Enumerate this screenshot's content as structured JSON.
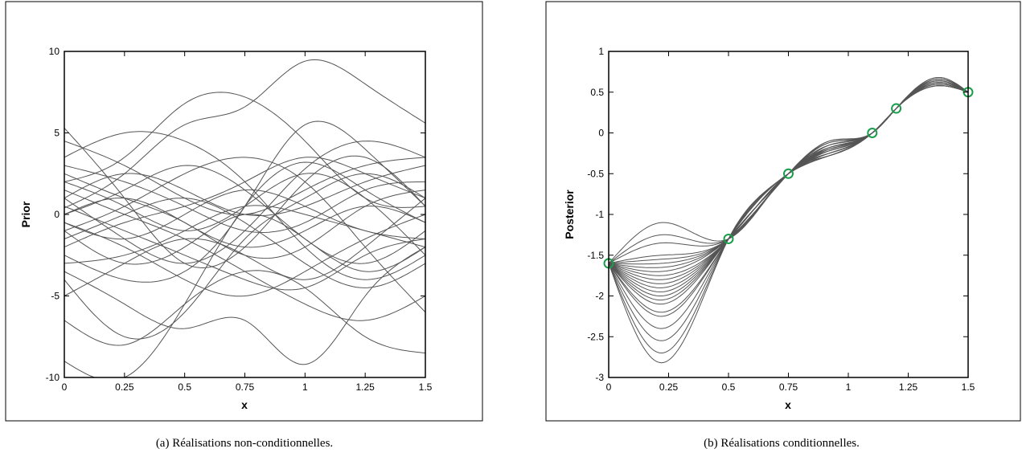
{
  "chart_data": [
    {
      "type": "line",
      "caption": "(a)  Réalisations non-conditionnelles.",
      "xlabel": "x",
      "ylabel": "Prior",
      "xlim": [
        0,
        1.5
      ],
      "ylim": [
        -10,
        10
      ],
      "xticks": [
        0,
        0.25,
        0.5,
        0.75,
        1,
        1.25,
        1.5
      ],
      "xtick_labels": [
        "0",
        "0.25",
        "0.5",
        "0.75",
        "1",
        "1.25",
        "1.5"
      ],
      "yticks": [
        -10,
        -5,
        0,
        5,
        10
      ],
      "ytick_labels": [
        "-10",
        "-5",
        "0",
        "5",
        "10"
      ],
      "x": [
        0,
        0.25,
        0.5,
        0.75,
        1.0,
        1.25,
        1.5
      ],
      "line_color": "#555555",
      "series": [
        {
          "values": [
            0.4,
            2.5,
            5.5,
            6.6,
            9.4,
            8.0,
            5.6
          ]
        },
        {
          "values": [
            -9.0,
            -10.0,
            -5.5,
            0.5,
            3.2,
            1.5,
            -0.5
          ]
        },
        {
          "values": [
            5.3,
            1.0,
            -3.0,
            -2.0,
            2.0,
            3.5,
            0.5
          ]
        },
        {
          "values": [
            -4.0,
            -7.5,
            -6.0,
            -1.5,
            1.0,
            2.5,
            1.0
          ]
        },
        {
          "values": [
            2.0,
            3.5,
            6.8,
            7.2,
            4.5,
            1.0,
            0.5
          ]
        },
        {
          "values": [
            -1.0,
            0.5,
            2.5,
            3.5,
            2.0,
            -2.0,
            -6.0
          ]
        },
        {
          "values": [
            1.0,
            -1.5,
            -3.0,
            -1.0,
            2.8,
            4.5,
            3.5
          ]
        },
        {
          "values": [
            -2.5,
            -4.0,
            -3.5,
            0.5,
            5.5,
            4.0,
            0.5
          ]
        },
        {
          "values": [
            3.0,
            2.0,
            0.5,
            -1.0,
            -0.5,
            1.5,
            2.0
          ]
        },
        {
          "values": [
            0.0,
            1.5,
            3.0,
            1.5,
            -1.5,
            -3.0,
            -1.0
          ]
        },
        {
          "values": [
            -0.5,
            -2.0,
            -4.0,
            -5.0,
            -3.5,
            -1.5,
            0.0
          ]
        },
        {
          "values": [
            1.5,
            0.0,
            -1.5,
            -3.5,
            -5.5,
            -6.5,
            -5.0
          ]
        },
        {
          "values": [
            -3.0,
            -2.5,
            -1.0,
            0.5,
            0.0,
            -1.0,
            -2.0
          ]
        },
        {
          "values": [
            4.5,
            3.0,
            1.0,
            0.0,
            1.5,
            3.0,
            3.5
          ]
        },
        {
          "values": [
            -1.5,
            0.0,
            1.0,
            -0.5,
            -3.0,
            -4.5,
            -3.0
          ]
        },
        {
          "values": [
            -6.5,
            -8.0,
            -5.5,
            -3.5,
            -4.5,
            -7.5,
            -8.5
          ]
        },
        {
          "values": [
            2.5,
            1.0,
            -0.5,
            -2.5,
            -2.0,
            0.5,
            1.5
          ]
        },
        {
          "values": [
            -2.0,
            -0.5,
            0.5,
            2.0,
            3.5,
            2.5,
            1.0
          ]
        },
        {
          "values": [
            0.5,
            -1.0,
            -2.5,
            -4.0,
            -4.5,
            -2.5,
            -1.5
          ]
        },
        {
          "values": [
            3.5,
            5.0,
            4.5,
            2.0,
            -2.0,
            -4.0,
            -2.5
          ]
        },
        {
          "values": [
            -5.0,
            -3.0,
            -1.5,
            -2.5,
            -4.0,
            -2.0,
            1.0
          ]
        },
        {
          "values": [
            1.0,
            2.5,
            1.5,
            0.0,
            0.5,
            2.0,
            3.0
          ]
        },
        {
          "values": [
            -0.5,
            -1.5,
            0.0,
            1.5,
            0.5,
            -1.0,
            -1.5
          ]
        },
        {
          "values": [
            -3.5,
            -5.5,
            -7.0,
            -6.5,
            -9.2,
            -5.0,
            -2.0
          ]
        },
        {
          "values": [
            2.0,
            0.5,
            -1.0,
            0.5,
            2.5,
            1.0,
            -2.5
          ]
        },
        {
          "values": [
            -1.0,
            -3.0,
            -2.0,
            0.0,
            -1.5,
            -3.5,
            -2.0
          ]
        },
        {
          "values": [
            0.0,
            1.0,
            -0.5,
            -2.0,
            -1.0,
            0.5,
            -0.5
          ]
        }
      ]
    },
    {
      "type": "line",
      "caption": "(b)  Réalisations conditionnelles.",
      "xlabel": "x",
      "ylabel": "Posterior",
      "xlim": [
        0,
        1.5
      ],
      "ylim": [
        -3,
        1
      ],
      "xticks": [
        0,
        0.25,
        0.5,
        0.75,
        1,
        1.25,
        1.5
      ],
      "xtick_labels": [
        "0",
        "0.25",
        "0.5",
        "0.75",
        "1",
        "1.25",
        "1.5"
      ],
      "yticks": [
        -3,
        -2.5,
        -2,
        -1.5,
        -1,
        -0.5,
        0,
        0.5,
        1
      ],
      "ytick_labels": [
        "-3",
        "-2.5",
        "-2",
        "-1.5",
        "-1",
        "-0.5",
        "0",
        "0.5",
        "1"
      ],
      "line_color": "#555555",
      "marker_color": "#1a9e4b",
      "observations": {
        "x": [
          0,
          0.5,
          0.75,
          1.1,
          1.2,
          1.5
        ],
        "y": [
          -1.6,
          -1.3,
          -0.5,
          0.0,
          0.3,
          0.5
        ]
      },
      "trough_x": 0.22,
      "trough_values": [
        -1.1,
        -1.25,
        -1.35,
        -1.5,
        -1.55,
        -1.6,
        -1.65,
        -1.7,
        -1.75,
        -1.8,
        -1.85,
        -1.9,
        -1.95,
        -2.0,
        -2.05,
        -2.1,
        -2.2,
        -2.25,
        -2.4,
        -2.55,
        -2.7,
        -2.82
      ],
      "bulge_values": [
        -0.28,
        -0.25,
        -0.22,
        -0.2,
        -0.18,
        -0.15,
        -0.12,
        -0.1
      ],
      "peak_values": [
        0.58,
        0.6,
        0.62,
        0.64,
        0.66,
        0.68
      ]
    }
  ]
}
